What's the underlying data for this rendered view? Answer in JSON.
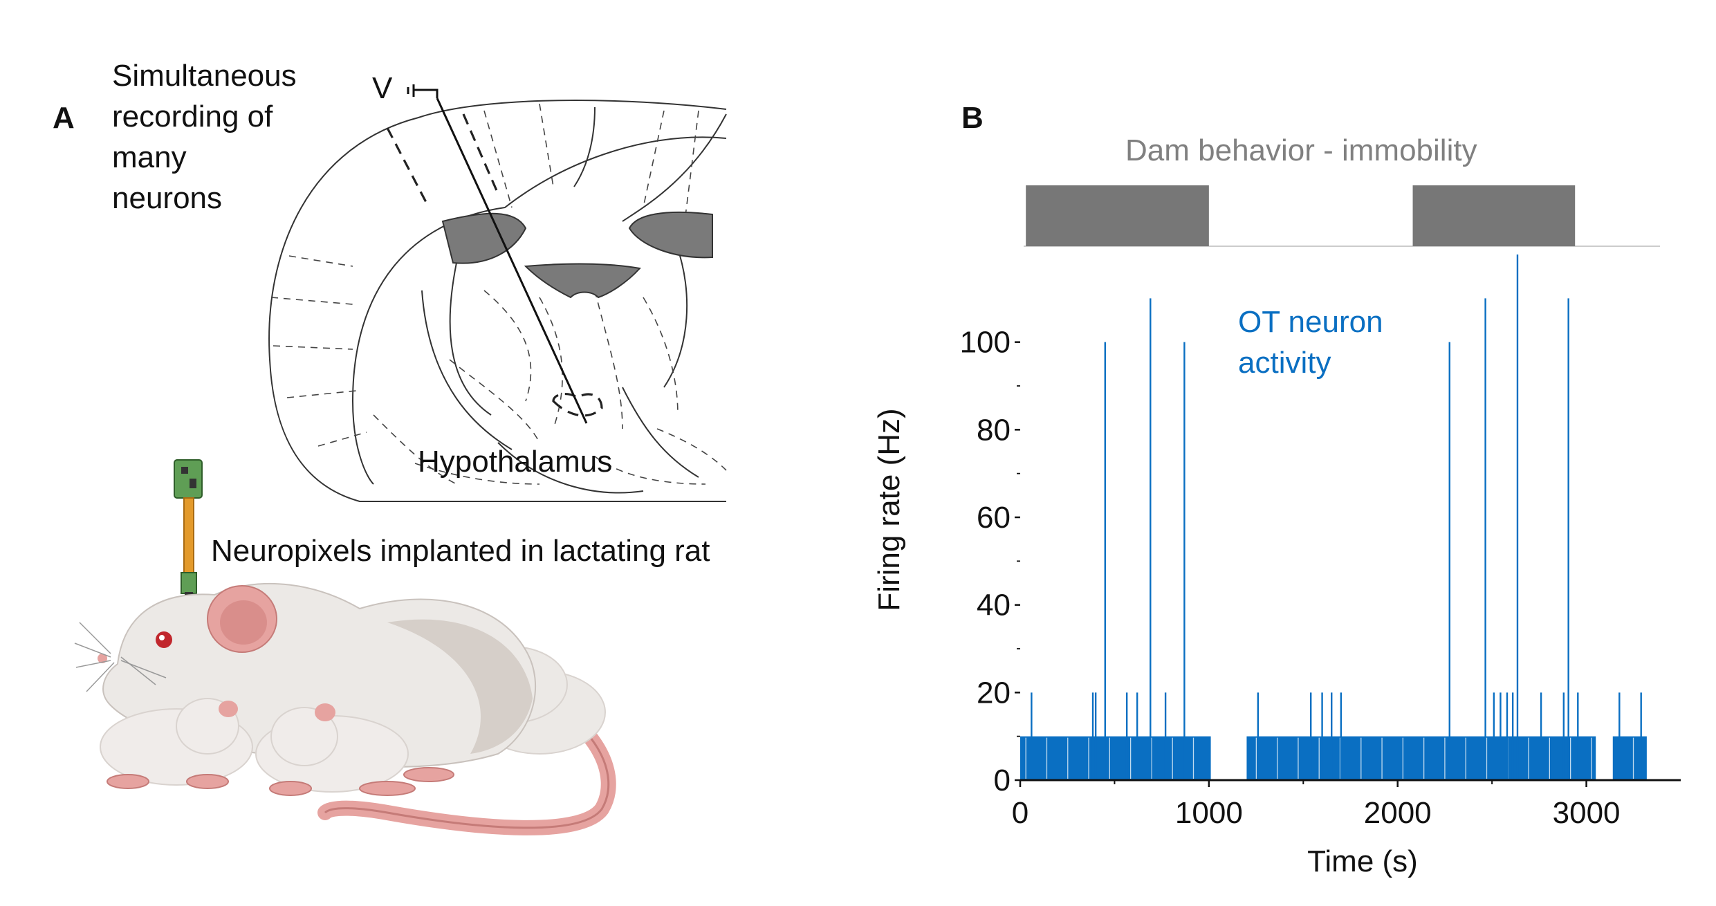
{
  "panel_a": {
    "label": "A",
    "recording_text": [
      "Simultaneous",
      "recording of",
      "many",
      "neurons"
    ],
    "electrode_label": "V",
    "region_label": "Hypothalamus",
    "implant_label": "Neuropixels implanted in lactating rat",
    "colors": {
      "ventricle": "#7a7a7a",
      "rat_body": "#ece9e6",
      "rat_skin": "#e6a3a0",
      "probe": "#e39a2b"
    }
  },
  "panel_b": {
    "label": "B",
    "behavior_title": "Dam behavior - immobility",
    "activity_label": [
      "OT neuron",
      "activity"
    ],
    "colors": {
      "trace": "#0a6fc2",
      "behavior_bar": "#777777",
      "behavior_title": "#808080"
    }
  },
  "chart_data": {
    "type": "bar",
    "title": "",
    "xlabel": "Time (s)",
    "ylabel": "Firing rate (Hz)",
    "xlim": [
      0,
      3500
    ],
    "ylim": [
      0,
      120
    ],
    "xticks": [
      0,
      1000,
      2000,
      3000
    ],
    "yticks": [
      0,
      20,
      40,
      60,
      80,
      100
    ],
    "baseline": {
      "value": 10,
      "segments": [
        [
          0,
          1010
        ],
        [
          1200,
          3050
        ],
        [
          3140,
          3320
        ]
      ]
    },
    "spikes": [
      {
        "t": 60,
        "v": 20
      },
      {
        "t": 385,
        "v": 20
      },
      {
        "t": 400,
        "v": 20
      },
      {
        "t": 450,
        "v": 100
      },
      {
        "t": 565,
        "v": 20
      },
      {
        "t": 620,
        "v": 20
      },
      {
        "t": 690,
        "v": 110
      },
      {
        "t": 770,
        "v": 20
      },
      {
        "t": 870,
        "v": 100
      },
      {
        "t": 1260,
        "v": 20
      },
      {
        "t": 1540,
        "v": 20
      },
      {
        "t": 1600,
        "v": 20
      },
      {
        "t": 1650,
        "v": 20
      },
      {
        "t": 1700,
        "v": 20
      },
      {
        "t": 2275,
        "v": 100
      },
      {
        "t": 2465,
        "v": 110
      },
      {
        "t": 2510,
        "v": 20
      },
      {
        "t": 2545,
        "v": 20
      },
      {
        "t": 2580,
        "v": 20
      },
      {
        "t": 2610,
        "v": 20
      },
      {
        "t": 2635,
        "v": 120
      },
      {
        "t": 2760,
        "v": 20
      },
      {
        "t": 2880,
        "v": 20
      },
      {
        "t": 2905,
        "v": 110
      },
      {
        "t": 2955,
        "v": 20
      },
      {
        "t": 3175,
        "v": 20
      },
      {
        "t": 3290,
        "v": 20
      }
    ],
    "behavior_immobility": [
      [
        30,
        1000
      ],
      [
        2080,
        2940
      ]
    ]
  }
}
